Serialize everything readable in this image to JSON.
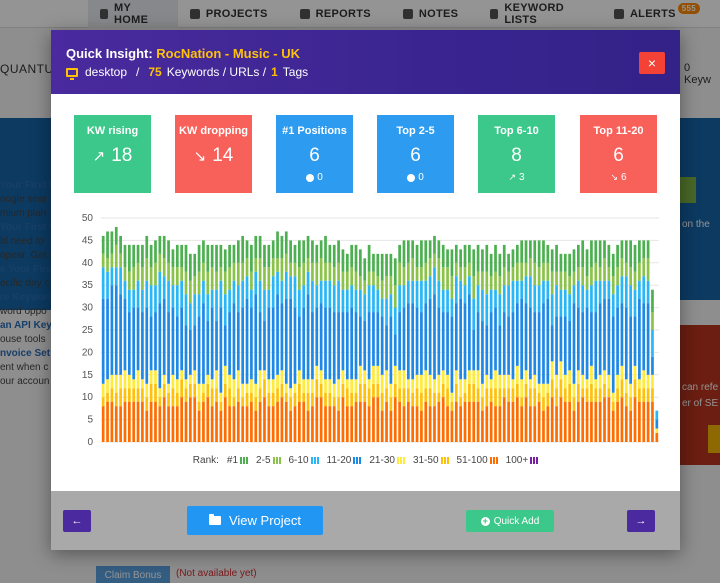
{
  "background": {
    "nav": [
      {
        "label": "MY HOME",
        "icon": "home-icon",
        "active": true
      },
      {
        "label": "PROJECTS",
        "icon": "folder-icon",
        "active": false
      },
      {
        "label": "REPORTS",
        "icon": "file-icon",
        "active": false
      },
      {
        "label": "NOTES",
        "icon": "comment-icon",
        "active": false
      },
      {
        "label": "KEYWORD LISTS",
        "icon": "list-icon",
        "active": false
      },
      {
        "label": "ALERTS",
        "icon": "bell-icon",
        "active": false
      }
    ],
    "alerts_badge": "555",
    "brand": "QUANTUM",
    "right_text": "0 Keyw",
    "left_items": [
      {
        "heading": "Your First P",
        "text": [
          "oogle sear",
          "mium plan"
        ]
      },
      {
        "heading": "Your First C",
        "text": [
          "ld need to",
          "opear. Get s"
        ]
      },
      {
        "heading": "e Your First",
        "text": [
          "ecific day c"
        ]
      },
      {
        "heading": "re Keyword",
        "text": [
          "word oppo"
        ]
      },
      {
        "heading": "an API Key:",
        "text": [
          "ouse tools"
        ]
      },
      {
        "heading": "nvoice Set",
        "text": [
          "ent when c",
          "our accoun"
        ]
      }
    ],
    "right_blue_text": "on the",
    "right_red_text": [
      "can refe",
      "er of SE"
    ],
    "claim_button": "Claim Bonus",
    "not_available": "(Not available yet)"
  },
  "modal": {
    "title_prefix": "Quick Insight: ",
    "title_highlight": "RocNation - Music - UK",
    "device": "desktop",
    "sep1": "/",
    "keywords_count": "75",
    "keywords_label": "Keywords / URLs /",
    "tags_count": "1",
    "tags_label": "Tags",
    "close_label": "×",
    "cards": [
      {
        "title": "KW rising",
        "value": "18",
        "icon": "trend-up-icon",
        "color": "#3cc88a",
        "sub": ""
      },
      {
        "title": "KW dropping",
        "value": "14",
        "icon": "trend-down-icon",
        "color": "#f8605a",
        "sub": ""
      },
      {
        "title": "#1 Positions",
        "value": "6",
        "icon": "",
        "color": "#2d9bf0",
        "sub": "0",
        "sub_icon": "circle-icon"
      },
      {
        "title": "Top 2-5",
        "value": "6",
        "icon": "",
        "color": "#2d9bf0",
        "sub": "0",
        "sub_icon": "circle-icon"
      },
      {
        "title": "Top 6-10",
        "value": "8",
        "icon": "",
        "color": "#3cc88a",
        "sub": "3",
        "sub_icon": "trend-up-icon"
      },
      {
        "title": "Top 11-20",
        "value": "6",
        "icon": "",
        "color": "#f8605a",
        "sub": "6",
        "sub_icon": "trend-down-icon"
      }
    ],
    "legend_prefix": "Rank:",
    "footer": {
      "prev_label": "←",
      "view_project_label": "View Project",
      "quick_add_label": "Quick Add",
      "next_label": "→"
    }
  },
  "chart_data": {
    "type": "bar",
    "stacked": true,
    "ylim": [
      0,
      50
    ],
    "yticks": [
      0,
      5,
      10,
      15,
      20,
      25,
      30,
      35,
      40,
      45,
      50
    ],
    "grid": true,
    "legend_position": "bottom",
    "series": [
      {
        "name": "#1",
        "color": "#4caf50"
      },
      {
        "name": "2-5",
        "color": "#8bc34a"
      },
      {
        "name": "6-10",
        "color": "#29b6f6"
      },
      {
        "name": "11-20",
        "color": "#1e88e5"
      },
      {
        "name": "21-30",
        "color": "#ffeb3b"
      },
      {
        "name": "31-50",
        "color": "#ffc107"
      },
      {
        "name": "51-100",
        "color": "#ff6d00"
      },
      {
        "name": "100+",
        "color": "#7b1fa2"
      }
    ],
    "totals": [
      46,
      47,
      47,
      48,
      46,
      44,
      44,
      44,
      44,
      44,
      46,
      44,
      45,
      46,
      46,
      45,
      43,
      44,
      44,
      44,
      42,
      42,
      44,
      45,
      44,
      44,
      44,
      44,
      43,
      44,
      44,
      45,
      46,
      45,
      44,
      46,
      46,
      44,
      44,
      45,
      47,
      46,
      47,
      45,
      44,
      45,
      45,
      46,
      45,
      44,
      45,
      46,
      44,
      44,
      45,
      43,
      42,
      44,
      44,
      43,
      41,
      44,
      42,
      42,
      42,
      42,
      42,
      41,
      44,
      45,
      45,
      45,
      44,
      45,
      45,
      45,
      46,
      45,
      44,
      43,
      43,
      44,
      43,
      44,
      44,
      43,
      44,
      43,
      44,
      42,
      44,
      42,
      44,
      42,
      43,
      44,
      45,
      45,
      45,
      45,
      45,
      45,
      44,
      43,
      44,
      42,
      42,
      42,
      43,
      44,
      45,
      43,
      45,
      45,
      45,
      45,
      44,
      42,
      44,
      45,
      45,
      45,
      44,
      45,
      45,
      45,
      33,
      7
    ],
    "bottom_orange_range": [
      6,
      10
    ],
    "note": "stack values approximated; each bar shows #1,2-5,6-10,11-20,21-30,31-50,51-100 counts"
  }
}
